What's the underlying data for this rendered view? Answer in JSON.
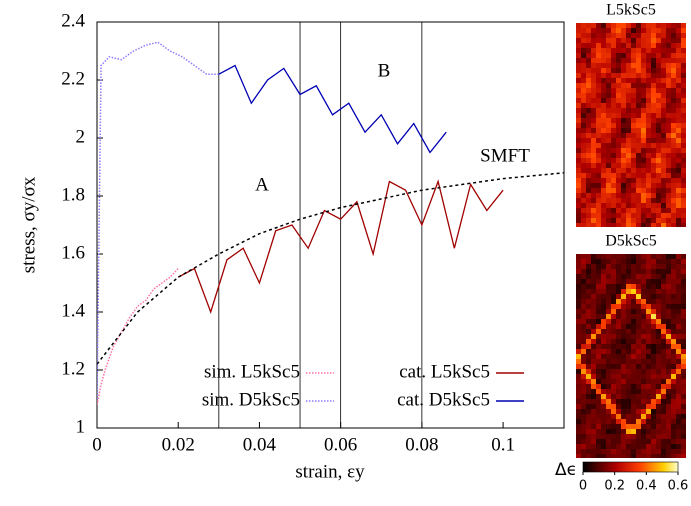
{
  "chart_data": {
    "type": "line",
    "x_label": "strain, εy",
    "y_label": "stress, σy/σx",
    "xlim": [
      0,
      0.115
    ],
    "ylim": [
      1,
      2.4
    ],
    "xticks": [
      0,
      0.02,
      0.04,
      0.06,
      0.08,
      0.1
    ],
    "yticks": [
      1,
      1.2,
      1.4,
      1.6,
      1.8,
      2,
      2.2,
      2.4
    ],
    "vlines": [
      0.03,
      0.05,
      0.06,
      0.08
    ],
    "annotations": [
      "A",
      "B"
    ],
    "series": [
      {
        "name": "sim. L5kSc5",
        "color": "#ff6fa8",
        "style": "dotted",
        "x": [
          0,
          0.001,
          0.002,
          0.004,
          0.006,
          0.008,
          0.01,
          0.012,
          0.014,
          0.016,
          0.018,
          0.02
        ],
        "values": [
          1.08,
          1.15,
          1.2,
          1.28,
          1.33,
          1.38,
          1.42,
          1.44,
          1.48,
          1.5,
          1.52,
          1.55
        ]
      },
      {
        "name": "sim. D5kSc5",
        "color": "#8c7cff",
        "style": "dotted",
        "x": [
          0,
          0.001,
          0.003,
          0.006,
          0.009,
          0.012,
          0.015,
          0.018,
          0.021,
          0.024,
          0.027,
          0.03
        ],
        "values": [
          1.1,
          2.25,
          2.28,
          2.27,
          2.3,
          2.32,
          2.33,
          2.3,
          2.28,
          2.25,
          2.22,
          2.22
        ]
      },
      {
        "name": "cat. L5kSc5",
        "color": "#a00000",
        "style": "solid",
        "x": [
          0.02,
          0.024,
          0.028,
          0.032,
          0.036,
          0.04,
          0.044,
          0.048,
          0.052,
          0.056,
          0.06,
          0.064,
          0.068,
          0.072,
          0.076,
          0.08,
          0.084,
          0.088,
          0.092,
          0.096,
          0.1
        ],
        "values": [
          1.52,
          1.55,
          1.4,
          1.58,
          1.62,
          1.5,
          1.68,
          1.7,
          1.62,
          1.75,
          1.72,
          1.78,
          1.6,
          1.85,
          1.82,
          1.7,
          1.85,
          1.62,
          1.84,
          1.75,
          1.82
        ]
      },
      {
        "name": "cat. D5kSc5",
        "color": "#0000b4",
        "style": "solid",
        "x": [
          0.03,
          0.034,
          0.038,
          0.042,
          0.046,
          0.05,
          0.054,
          0.058,
          0.062,
          0.066,
          0.07,
          0.074,
          0.078,
          0.082,
          0.086
        ],
        "values": [
          2.22,
          2.25,
          2.12,
          2.2,
          2.24,
          2.15,
          2.18,
          2.08,
          2.12,
          2.02,
          2.08,
          1.98,
          2.05,
          1.95,
          2.02
        ]
      },
      {
        "name": "SMFT",
        "color": "#000000",
        "style": "dashed",
        "x": [
          0,
          0.01,
          0.02,
          0.03,
          0.04,
          0.05,
          0.06,
          0.07,
          0.08,
          0.09,
          0.1,
          0.115
        ],
        "values": [
          1.22,
          1.4,
          1.52,
          1.6,
          1.67,
          1.72,
          1.76,
          1.79,
          1.82,
          1.84,
          1.86,
          1.88
        ]
      }
    ],
    "panels": [
      "L5kSc5",
      "D5kSc5"
    ],
    "colorbar": {
      "label": "Δϵ",
      "lim": [
        0,
        0.6
      ],
      "ticks": [
        0,
        0.2,
        0.4,
        0.6
      ]
    }
  }
}
